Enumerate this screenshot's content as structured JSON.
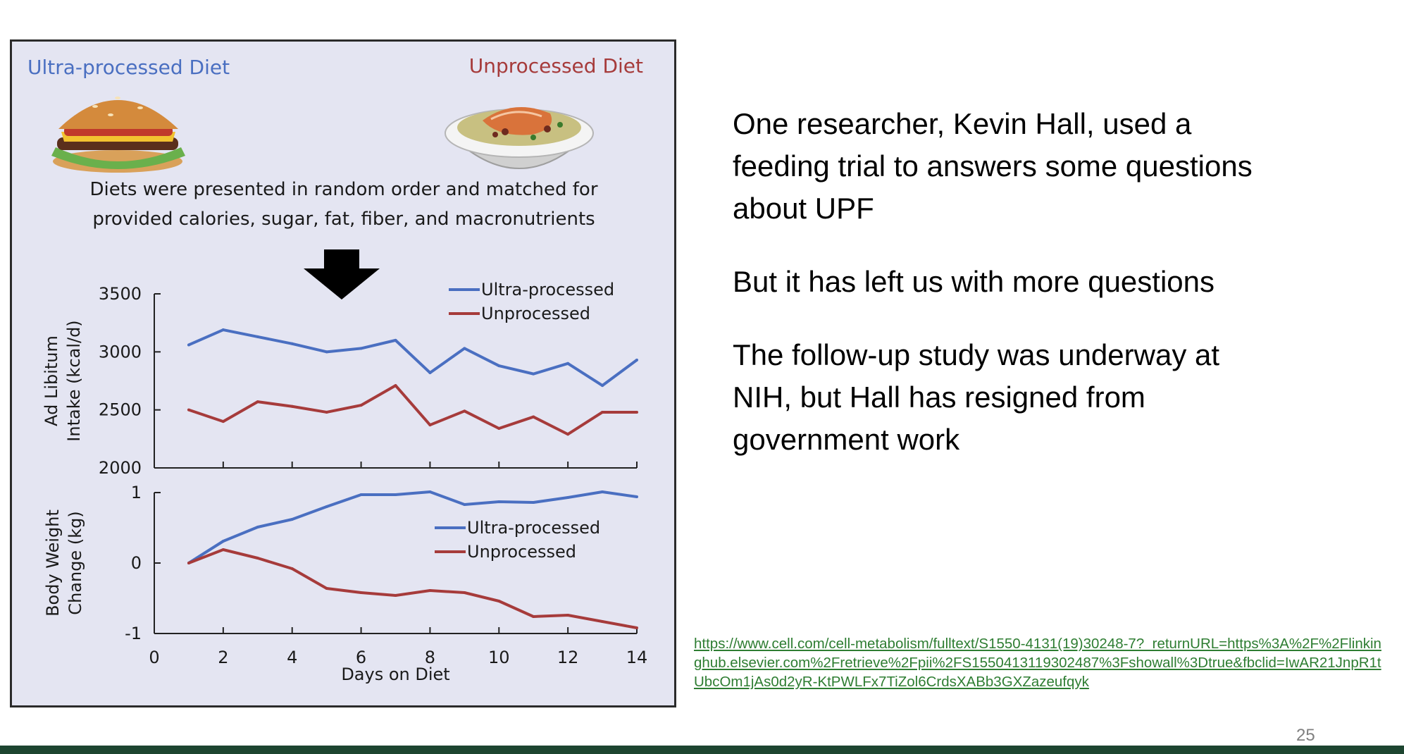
{
  "colors": {
    "ultra_series": "#4a6fc1",
    "unprocessed_series": "#a63b3b",
    "panel_background": "#e4e5f2",
    "link": "#2e7d32",
    "footer_bar": "#1d4530"
  },
  "figure": {
    "left_diet_label": "Ultra-processed Diet",
    "right_diet_label": "Unprocessed Diet",
    "caption_line1": "Diets were presented in random order and matched for",
    "caption_line2": "provided calories, sugar, fat, fiber, and macronutrients",
    "left_image_icon": "hamburger-icon",
    "right_image_icon": "salmon-plate-icon",
    "arrow_icon": "down-arrow-icon"
  },
  "chart_data": [
    {
      "type": "line",
      "ylabel_line1": "Ad Libitum",
      "ylabel_line2": "Intake (kcal/d)",
      "ylim": [
        2000,
        3500
      ],
      "yticks": [
        "3500",
        "3000",
        "2500",
        "2000"
      ],
      "xlim": [
        0,
        14
      ],
      "legend_position": "top-right",
      "x": [
        1,
        2,
        3,
        4,
        5,
        6,
        7,
        8,
        9,
        10,
        11,
        12,
        13,
        14
      ],
      "series": [
        {
          "name": "Ultra-processed",
          "values": [
            3060,
            3190,
            3130,
            3070,
            3000,
            3030,
            3100,
            2820,
            3030,
            2880,
            2810,
            2900,
            2710,
            2930
          ]
        },
        {
          "name": "Unprocessed",
          "values": [
            2500,
            2400,
            2570,
            2530,
            2480,
            2540,
            2710,
            2370,
            2490,
            2340,
            2440,
            2290,
            2480,
            2480
          ]
        }
      ]
    },
    {
      "type": "line",
      "ylabel_line1": "Body Weight",
      "ylabel_line2": "Change (kg)",
      "xlabel": "Days on Diet",
      "ylim": [
        -1,
        1
      ],
      "yticks": [
        "1",
        "0",
        "-1"
      ],
      "xlim": [
        0,
        14
      ],
      "xticks": [
        "0",
        "2",
        "4",
        "6",
        "8",
        "10",
        "12",
        "14"
      ],
      "legend_position": "center-right",
      "x": [
        1,
        2,
        3,
        4,
        5,
        6,
        7,
        8,
        9,
        10,
        11,
        12,
        13,
        14
      ],
      "series": [
        {
          "name": "Ultra-processed",
          "values": [
            0,
            0.31,
            0.51,
            0.62,
            0.8,
            0.97,
            0.97,
            1.01,
            0.83,
            0.87,
            0.86,
            0.93,
            1.01,
            0.94
          ]
        },
        {
          "name": "Unprocessed",
          "values": [
            0,
            0.19,
            0.07,
            -0.08,
            -0.36,
            -0.42,
            -0.46,
            -0.39,
            -0.42,
            -0.54,
            -0.76,
            -0.74,
            -0.83,
            -0.92
          ]
        }
      ]
    }
  ],
  "text": {
    "paragraph1": "One researcher, Kevin Hall, used a feeding trial to answers some questions about UPF",
    "paragraph2": "But it has left us with more questions",
    "paragraph3": "The follow-up study was underway at NIH, but Hall has resigned from government work"
  },
  "source_link": "https://www.cell.com/cell-metabolism/fulltext/S1550-4131(19)30248-7?_returnURL=https%3A%2F%2Flinkinghub.elsevier.com%2Fretrieve%2Fpii%2FS1550413119302487%3Fshowall%3Dtrue&fbclid=IwAR21JnpR1tUbcOm1jAs0d2yR-KtPWLFx7TiZol6CrdsXABb3GXZazeufqyk",
  "page_number": "25"
}
